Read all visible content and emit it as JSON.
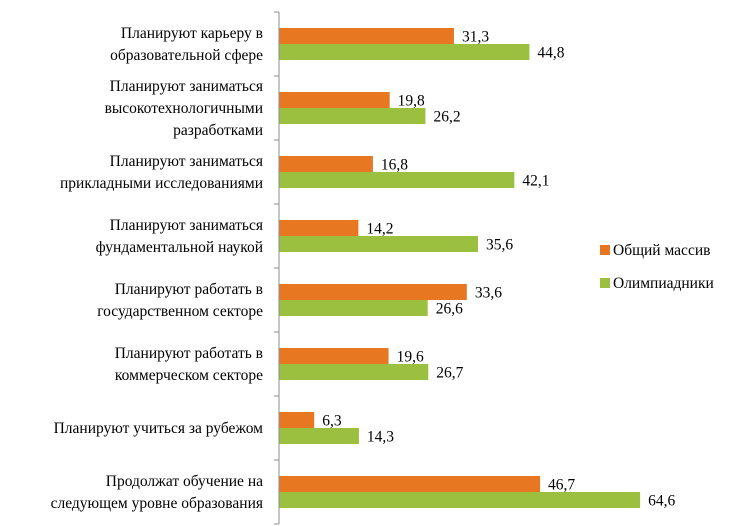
{
  "chart_data": {
    "type": "bar",
    "orientation": "horizontal",
    "title": "",
    "xlabel": "",
    "ylabel": "",
    "xlim": [
      0,
      70
    ],
    "grid": false,
    "legend_position": "right",
    "categories": [
      [
        "Планируют карьеру в",
        "образовательной сфере"
      ],
      [
        "Планируют заниматься",
        "высокотехнологичными",
        "разработками"
      ],
      [
        "Планируют заниматься",
        "прикладными исследованиями"
      ],
      [
        "Планируют заниматься",
        "фундаментальной наукой"
      ],
      [
        "Планируют работать  в",
        "государственном секторе"
      ],
      [
        "Планируют работать в",
        "коммерческом секторе"
      ],
      [
        "Планируют учиться за рубежом"
      ],
      [
        "Продолжат обучение на",
        "следующем уровне образования"
      ]
    ],
    "series": [
      {
        "name": "Общий массив",
        "color": "#E87722",
        "values": [
          31.3,
          19.8,
          16.8,
          14.2,
          33.6,
          19.6,
          6.3,
          46.7
        ],
        "labels": [
          "31,3",
          "19,8",
          "16,8",
          "14,2",
          "33,6",
          "19,6",
          "6,3",
          "46,7"
        ]
      },
      {
        "name": "Олимпиадники",
        "color": "#9BC03F",
        "values": [
          44.8,
          26.2,
          42.1,
          35.6,
          26.6,
          26.7,
          14.3,
          64.6
        ],
        "labels": [
          "44,8",
          "26,2",
          "42,1",
          "35,6",
          "26,6",
          "26,7",
          "14,3",
          "64,6"
        ]
      }
    ]
  }
}
